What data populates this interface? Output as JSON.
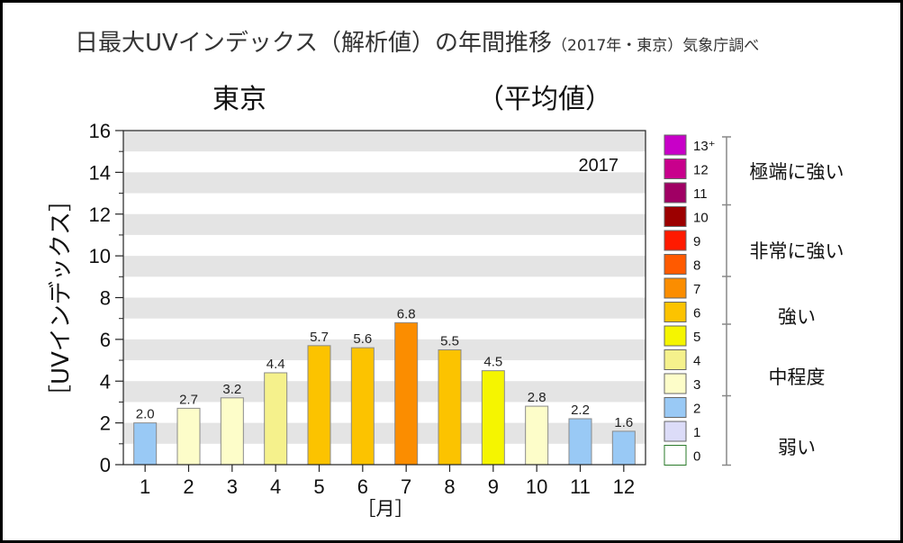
{
  "title": {
    "main": "日最大UVインデックス（解析値）の年間推移",
    "sub": "（2017年・東京）気象庁調べ"
  },
  "chart_data": {
    "type": "bar",
    "location": "東京",
    "subtitle": "（平均値）",
    "year_label": "2017",
    "categories": [
      "1",
      "2",
      "3",
      "4",
      "5",
      "6",
      "7",
      "8",
      "9",
      "10",
      "11",
      "12"
    ],
    "values": [
      2.0,
      2.7,
      3.2,
      4.4,
      5.7,
      5.6,
      6.8,
      5.5,
      4.5,
      2.8,
      2.2,
      1.6
    ],
    "value_labels": [
      "2.0",
      "2.7",
      "3.2",
      "4.4",
      "5.7",
      "5.6",
      "6.8",
      "5.5",
      "4.5",
      "2.8",
      "2.2",
      "1.6"
    ],
    "bar_colors": [
      "#99c9f5",
      "#fdfdc9",
      "#fdfdc9",
      "#f5f18c",
      "#fcc300",
      "#fcc300",
      "#fb8d00",
      "#fcc300",
      "#f5f500",
      "#fdfdc9",
      "#99c9f5",
      "#99c9f5"
    ],
    "xlabel": "［月］",
    "ylabel": "［UVインデックス］",
    "ylim": [
      0,
      16
    ],
    "yticks": [
      "0",
      "2",
      "4",
      "6",
      "8",
      "10",
      "12",
      "14",
      "16"
    ],
    "grid": "alternating horizontal bands"
  },
  "legend": {
    "items": [
      {
        "label": "13⁺",
        "color": "#c800c8"
      },
      {
        "label": "12",
        "color": "#c8008c"
      },
      {
        "label": "11",
        "color": "#a00064"
      },
      {
        "label": "10",
        "color": "#9c0000"
      },
      {
        "label": "9",
        "color": "#ff1a00"
      },
      {
        "label": "8",
        "color": "#ff5a00"
      },
      {
        "label": "7",
        "color": "#fb8d00"
      },
      {
        "label": "6",
        "color": "#fcc300"
      },
      {
        "label": "5",
        "color": "#f5f500"
      },
      {
        "label": "4",
        "color": "#f5f18c"
      },
      {
        "label": "3",
        "color": "#fdfdc9"
      },
      {
        "label": "2",
        "color": "#99c9f5"
      },
      {
        "label": "1",
        "color": "#dcdcf8"
      },
      {
        "label": "0",
        "color": "#ffffff"
      }
    ],
    "categories": [
      "極端に強い",
      "非常に強い",
      "強い",
      "中程度",
      "弱い"
    ]
  }
}
